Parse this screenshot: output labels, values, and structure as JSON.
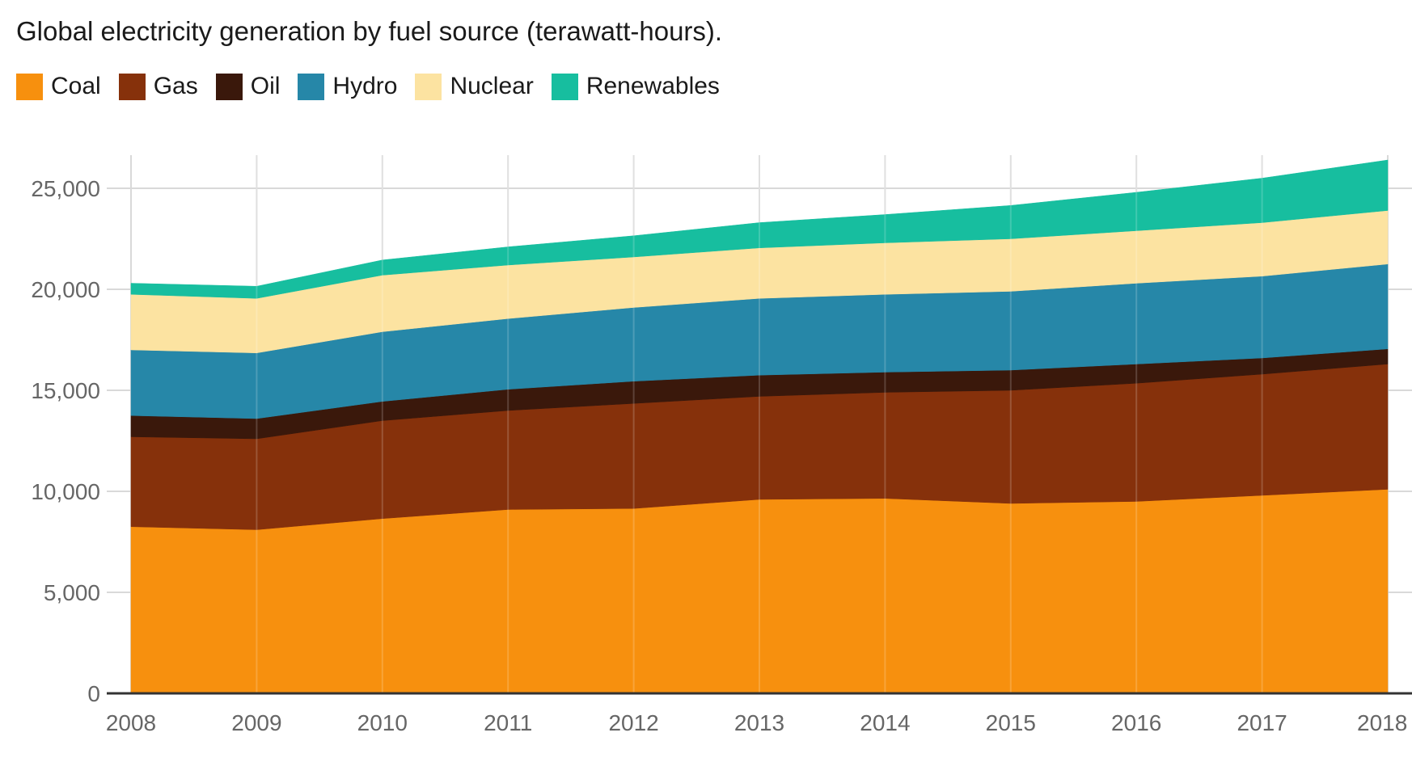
{
  "chart_data": {
    "type": "area",
    "stacked": true,
    "title": "Global electricity generation by fuel source (terawatt-hours).",
    "xlabel": "",
    "ylabel": "",
    "x": [
      2008,
      2009,
      2010,
      2011,
      2012,
      2013,
      2014,
      2015,
      2016,
      2017,
      2018
    ],
    "x_tick_labels": [
      "2008",
      "2009",
      "2010",
      "2011",
      "2012",
      "2013",
      "2014",
      "2015",
      "2016",
      "2017",
      "2018"
    ],
    "ylim": [
      0,
      26500
    ],
    "y_ticks": [
      0,
      5000,
      10000,
      15000,
      20000,
      25000
    ],
    "y_tick_labels": [
      "0",
      "5,000",
      "10,000",
      "15,000",
      "20,000",
      "25,000"
    ],
    "grid": true,
    "legend_position": "top-left",
    "series": [
      {
        "name": "Coal",
        "color": "#F7900E",
        "values": [
          8250,
          8100,
          8650,
          9100,
          9150,
          9600,
          9650,
          9400,
          9500,
          9800,
          10100
        ]
      },
      {
        "name": "Gas",
        "color": "#86310B",
        "values": [
          4450,
          4500,
          4850,
          4900,
          5200,
          5100,
          5250,
          5600,
          5850,
          6000,
          6200
        ]
      },
      {
        "name": "Oil",
        "color": "#3A180B",
        "values": [
          1050,
          1000,
          950,
          1050,
          1100,
          1050,
          1000,
          1000,
          950,
          800,
          750
        ]
      },
      {
        "name": "Hydro",
        "color": "#2687A8",
        "values": [
          3250,
          3250,
          3450,
          3500,
          3650,
          3800,
          3850,
          3900,
          4000,
          4050,
          4200
        ]
      },
      {
        "name": "Nuclear",
        "color": "#FCE3A1",
        "values": [
          2750,
          2700,
          2800,
          2650,
          2500,
          2500,
          2550,
          2600,
          2600,
          2650,
          2650
        ]
      },
      {
        "name": "Renewables",
        "color": "#17BE9F",
        "values": [
          550,
          600,
          750,
          900,
          1050,
          1250,
          1400,
          1650,
          1900,
          2200,
          2500
        ]
      }
    ]
  }
}
